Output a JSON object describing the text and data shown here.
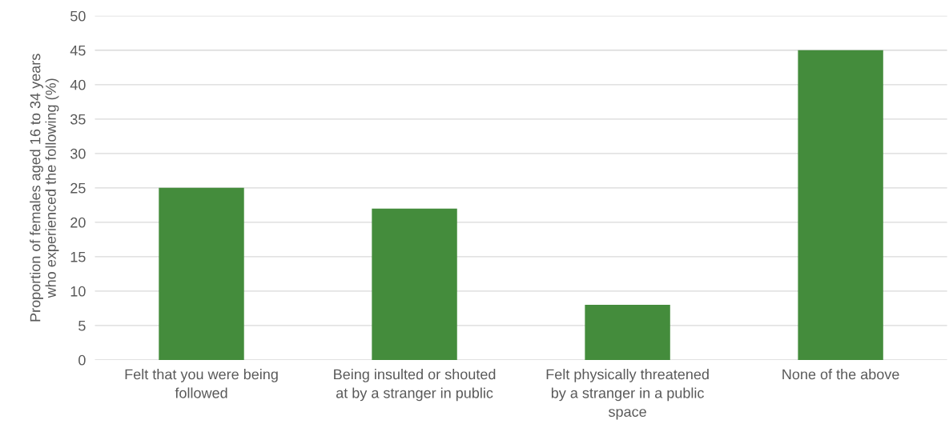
{
  "chart_data": {
    "type": "bar",
    "ylabel": "Proportion of females aged 16 to 34 years who experienced the following (%)",
    "categories": [
      "Felt that you were being followed",
      "Being insulted or shouted at by a stranger in public",
      "Felt physically threatened by a stranger in a public space",
      "None of the above"
    ],
    "values": [
      25,
      22,
      8,
      45
    ],
    "color": "#448c3c",
    "ylim": [
      0,
      50
    ],
    "yticks": [
      0,
      5,
      10,
      15,
      20,
      25,
      30,
      35,
      40,
      45,
      50
    ],
    "grid": "y",
    "legend": false
  }
}
